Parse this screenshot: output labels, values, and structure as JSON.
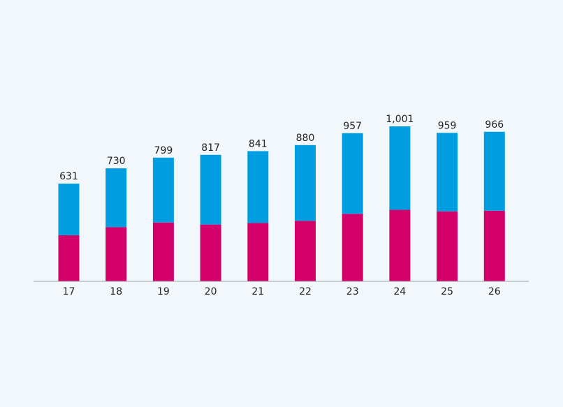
{
  "chart_data": {
    "type": "bar",
    "stacked": true,
    "categories": [
      "17",
      "18",
      "19",
      "20",
      "21",
      "22",
      "23",
      "24",
      "25",
      "26"
    ],
    "total_labels": [
      "631",
      "730",
      "799",
      "817",
      "841",
      "880",
      "957",
      "1,001",
      "959",
      "966"
    ],
    "series": [
      {
        "values": [
          298,
          350,
          380,
          367,
          377,
          391,
          436,
          462,
          452,
          456
        ],
        "color": "#d4006a"
      },
      {
        "values": [
          333,
          380,
          419,
          450,
          464,
          489,
          521,
          539,
          507,
          510
        ],
        "color": "#009ee0"
      }
    ],
    "ylim": [
      0,
      1001
    ],
    "grid": false,
    "legend": "none"
  }
}
